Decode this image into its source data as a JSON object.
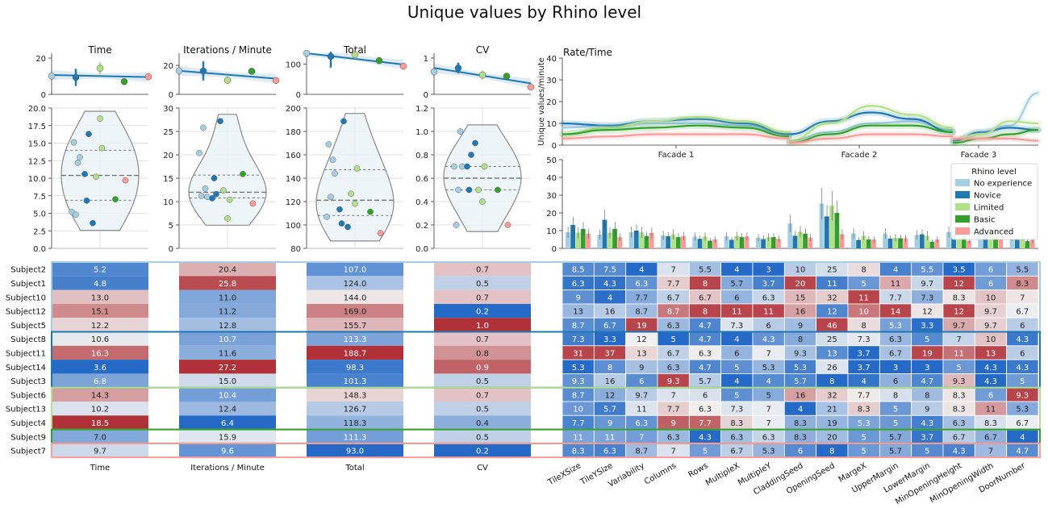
{
  "title": "Unique values by Rhino level",
  "palette": {
    "No experience": "#a6cee3",
    "Novice": "#1f78b4",
    "Limited": "#b2df8a",
    "Basic": "#33a02c",
    "Advanced": "#fb9a99"
  },
  "legend": {
    "title": "Rhino level",
    "entries": [
      "No experience",
      "Novice",
      "Limited",
      "Basic",
      "Advanced"
    ],
    "placement": "right"
  },
  "metric_panels": [
    {
      "title": "Time",
      "reg_ylim": [
        0,
        20
      ],
      "reg_yticks": [
        0,
        20
      ],
      "violin_ylim": [
        0,
        20
      ],
      "violin_yticks": [
        0.0,
        2.5,
        5.0,
        7.5,
        10.0,
        12.5,
        15.0,
        17.5,
        20.0
      ],
      "violin_yticklabels": [
        "0.0",
        "2.5",
        "5.0",
        "7.5",
        "10.0",
        "12.5",
        "15.0",
        "17.5",
        "20.0"
      ],
      "heat_xlabel": "Time"
    },
    {
      "title": "Iterations / Minute",
      "reg_ylim": [
        0,
        25
      ],
      "reg_yticks": [
        0,
        20
      ],
      "violin_ylim": [
        0,
        30
      ],
      "violin_yticks": [
        0,
        5,
        10,
        15,
        20,
        25,
        30
      ],
      "violin_yticklabels": [
        "0",
        "5",
        "10",
        "15",
        "20",
        "25",
        "30"
      ],
      "heat_xlabel": "Iterations / Minute"
    },
    {
      "title": "Total",
      "reg_ylim": [
        0,
        120
      ],
      "reg_yticks": [
        0,
        100
      ],
      "violin_ylim": [
        80,
        200
      ],
      "violin_yticks": [
        80,
        100,
        120,
        140,
        160,
        180,
        200
      ],
      "violin_yticklabels": [
        "80",
        "100",
        "120",
        "140",
        "160",
        "180",
        "200"
      ],
      "heat_xlabel": "Total"
    },
    {
      "title": "CV",
      "reg_ylim": [
        0,
        1
      ],
      "reg_yticks": [
        0,
        1
      ],
      "violin_ylim": [
        0,
        1.2
      ],
      "violin_yticks": [
        0.0,
        0.2,
        0.4,
        0.6,
        0.8,
        1.0,
        1.2
      ],
      "violin_yticklabels": [
        "0.0",
        "0.2",
        "0.4",
        "0.6",
        "0.8",
        "1.0",
        "1.2"
      ],
      "heat_xlabel": "CV"
    }
  ],
  "subjects": [
    {
      "name": "Subject2",
      "level": "No experience",
      "metrics": [
        "5.2",
        "20.4",
        "107.0",
        "0.7"
      ],
      "params": [
        "8.5",
        "7.5",
        "4",
        "7",
        "5.5",
        "4",
        "3",
        "10",
        "25",
        "8",
        "4",
        "5.5",
        "3.5",
        "6",
        "5.5"
      ]
    },
    {
      "name": "Subject1",
      "level": "No experience",
      "metrics": [
        "4.8",
        "25.8",
        "124.0",
        "0.5"
      ],
      "params": [
        "6.3",
        "4.3",
        "6.3",
        "7.7",
        "8",
        "5.7",
        "3.7",
        "20",
        "11",
        "5",
        "11",
        "9.7",
        "12",
        "6",
        "8.3"
      ]
    },
    {
      "name": "Subject10",
      "level": "No experience",
      "metrics": [
        "13.0",
        "11.0",
        "144.0",
        "0.7"
      ],
      "params": [
        "9",
        "4",
        "7.7",
        "6.7",
        "6.7",
        "6",
        "6.3",
        "15",
        "32",
        "11",
        "7.7",
        "7.3",
        "8.3",
        "10",
        "7"
      ]
    },
    {
      "name": "Subject12",
      "level": "No experience",
      "metrics": [
        "15.1",
        "11.2",
        "169.0",
        "0.2"
      ],
      "params": [
        "13",
        "16",
        "8.7",
        "8.7",
        "8",
        "11",
        "11",
        "16",
        "12",
        "10",
        "14",
        "12",
        "12",
        "9.7",
        "6.7"
      ]
    },
    {
      "name": "Subject5",
      "level": "No experience",
      "metrics": [
        "12.2",
        "12.8",
        "155.7",
        "1.0"
      ],
      "params": [
        "8.7",
        "6.7",
        "19",
        "6.3",
        "4.7",
        "7.3",
        "6",
        "9",
        "46",
        "8",
        "5.3",
        "3.3",
        "9.7",
        "9.7",
        "6"
      ]
    },
    {
      "name": "Subject8",
      "level": "Novice",
      "metrics": [
        "10.6",
        "10.7",
        "113.3",
        "0.7"
      ],
      "params": [
        "7.3",
        "3.3",
        "12",
        "5",
        "4.7",
        "4",
        "4.3",
        "8",
        "25",
        "7.3",
        "6.3",
        "5",
        "7",
        "10",
        "4.3"
      ]
    },
    {
      "name": "Subject11",
      "level": "Novice",
      "metrics": [
        "16.3",
        "11.6",
        "188.7",
        "0.8"
      ],
      "params": [
        "31",
        "37",
        "13",
        "6.7",
        "6.3",
        "6",
        "7",
        "9.3",
        "13",
        "3.7",
        "6.7",
        "19",
        "11",
        "13",
        "6"
      ]
    },
    {
      "name": "Subject14",
      "level": "Novice",
      "metrics": [
        "3.6",
        "27.2",
        "98.3",
        "0.9"
      ],
      "params": [
        "5.3",
        "8",
        "9",
        "6.3",
        "4.7",
        "5",
        "5.3",
        "5.3",
        "26",
        "3.7",
        "3",
        "3",
        "5",
        "4.3",
        "4.3"
      ]
    },
    {
      "name": "Subject3",
      "level": "Novice",
      "metrics": [
        "6.8",
        "15.0",
        "101.3",
        "0.5"
      ],
      "params": [
        "9.3",
        "16",
        "6",
        "9.3",
        "5.7",
        "4",
        "4",
        "5.7",
        "8",
        "4",
        "6",
        "4.7",
        "9.3",
        "4.3",
        "5"
      ]
    },
    {
      "name": "Subject6",
      "level": "Limited",
      "metrics": [
        "14.3",
        "10.4",
        "148.3",
        "0.7"
      ],
      "params": [
        "8.7",
        "12",
        "9.7",
        "7",
        "6",
        "5",
        "5",
        "16",
        "32",
        "7.7",
        "8",
        "8",
        "8.3",
        "6",
        "9.3"
      ]
    },
    {
      "name": "Subject13",
      "level": "Limited",
      "metrics": [
        "10.2",
        "12.4",
        "126.7",
        "0.5"
      ],
      "params": [
        "10",
        "5.7",
        "11",
        "7.7",
        "6.3",
        "7.3",
        "7",
        "4",
        "21",
        "8.3",
        "5",
        "9",
        "8.3",
        "11",
        "5.3"
      ]
    },
    {
      "name": "Subject4",
      "level": "Limited",
      "metrics": [
        "18.5",
        "6.4",
        "118.3",
        "0.4"
      ],
      "params": [
        "7.7",
        "9",
        "6.3",
        "9",
        "7.7",
        "8.3",
        "7",
        "8.3",
        "19",
        "5.3",
        "5",
        "4.3",
        "6.3",
        "8.3",
        "6.7"
      ]
    },
    {
      "name": "Subject9",
      "level": "Basic",
      "metrics": [
        "7.0",
        "15.9",
        "111.3",
        "0.5"
      ],
      "params": [
        "11",
        "11",
        "7",
        "6.3",
        "4.3",
        "6.3",
        "6.3",
        "8.3",
        "20",
        "5",
        "5.7",
        "3.7",
        "6.7",
        "6.7",
        "4"
      ]
    },
    {
      "name": "Subject7",
      "level": "Advanced",
      "metrics": [
        "9.7",
        "9.6",
        "93.0",
        "0.2"
      ],
      "params": [
        "8.3",
        "6.3",
        "8.7",
        "7",
        "5",
        "6.7",
        "5.3",
        "6",
        "8",
        "5",
        "5.7",
        "5",
        "4.3",
        "7",
        "4.7"
      ]
    }
  ],
  "params": [
    "TileXSize",
    "TileYSize",
    "Variability",
    "Columns",
    "Rows",
    "MultipleX",
    "MultipleY",
    "CladdingSeed",
    "OpeningSeed",
    "MargeX",
    "UpperMargin",
    "LowerMargin",
    "MinOpeningHeight",
    "MinOpeningWidth",
    "DoorNumber"
  ],
  "rate_time": {
    "title": "Rate/Time",
    "ylabel": "Unique values/minute",
    "ylim": [
      0,
      40
    ],
    "yticks": [
      0,
      10,
      20,
      30,
      40
    ],
    "sections": [
      "Facade 1",
      "Facade 2",
      "Facade 3"
    ]
  },
  "param_bar": {
    "ylim": [
      0,
      50
    ],
    "yticks": [
      0,
      10,
      20,
      30,
      40,
      50
    ]
  },
  "chart_data": [
    {
      "type": "scatter",
      "title": "Time",
      "series": [
        {
          "name": "No experience",
          "values": [
            5.2,
            4.8,
            13.0,
            15.1,
            12.2
          ]
        },
        {
          "name": "Novice",
          "values": [
            10.6,
            16.3,
            3.6,
            6.8
          ]
        },
        {
          "name": "Limited",
          "values": [
            14.3,
            10.2,
            18.5
          ]
        },
        {
          "name": "Basic",
          "values": [
            7.0
          ]
        },
        {
          "name": "Advanced",
          "values": [
            9.7
          ]
        }
      ],
      "ylim": [
        0,
        20
      ]
    },
    {
      "type": "scatter",
      "title": "Iterations / Minute",
      "series": [
        {
          "name": "No experience",
          "values": [
            20.4,
            25.8,
            11.0,
            11.2,
            12.8
          ]
        },
        {
          "name": "Novice",
          "values": [
            10.7,
            11.6,
            27.2,
            15.0
          ]
        },
        {
          "name": "Limited",
          "values": [
            10.4,
            12.4,
            6.4
          ]
        },
        {
          "name": "Basic",
          "values": [
            15.9
          ]
        },
        {
          "name": "Advanced",
          "values": [
            9.6
          ]
        }
      ],
      "ylim": [
        0,
        30
      ]
    },
    {
      "type": "scatter",
      "title": "Total",
      "series": [
        {
          "name": "No experience",
          "values": [
            107.0,
            124.0,
            144.0,
            169.0,
            155.7
          ]
        },
        {
          "name": "Novice",
          "values": [
            113.3,
            188.7,
            98.3,
            101.3
          ]
        },
        {
          "name": "Limited",
          "values": [
            148.3,
            126.7,
            118.3
          ]
        },
        {
          "name": "Basic",
          "values": [
            111.3
          ]
        },
        {
          "name": "Advanced",
          "values": [
            93.0
          ]
        }
      ],
      "ylim": [
        80,
        200
      ]
    },
    {
      "type": "scatter",
      "title": "CV",
      "series": [
        {
          "name": "No experience",
          "values": [
            0.7,
            0.5,
            0.7,
            0.2,
            1.0
          ]
        },
        {
          "name": "Novice",
          "values": [
            0.7,
            0.8,
            0.9,
            0.5
          ]
        },
        {
          "name": "Limited",
          "values": [
            0.7,
            0.5,
            0.4
          ]
        },
        {
          "name": "Basic",
          "values": [
            0.5
          ]
        },
        {
          "name": "Advanced",
          "values": [
            0.2
          ]
        }
      ],
      "ylim": [
        0,
        1.2
      ]
    },
    {
      "type": "line",
      "title": "Rate/Time",
      "ylabel": "Unique values/minute",
      "ylim": [
        0,
        40
      ],
      "categories": [
        "Facade 1",
        "Facade 2",
        "Facade 3"
      ],
      "series": [
        {
          "name": "No experience",
          "values": [
            [
              8,
              9,
              10,
              10,
              9,
              5
            ],
            [
              2,
              6,
              10,
              11,
              7
            ],
            [
              2,
              6,
              9,
              24
            ]
          ]
        },
        {
          "name": "Novice",
          "values": [
            [
              10,
              9,
              11,
              12,
              10,
              5
            ],
            [
              5,
              11,
              15,
              12,
              6
            ],
            [
              2,
              6,
              8,
              7
            ]
          ]
        },
        {
          "name": "Limited",
          "values": [
            [
              5,
              8,
              11,
              13,
              11,
              6
            ],
            [
              2,
              10,
              18,
              14,
              8
            ],
            [
              3,
              5,
              11,
              10
            ]
          ]
        },
        {
          "name": "Basic",
          "values": [
            [
              5,
              7,
              8,
              9,
              8,
              4
            ],
            [
              1,
              5,
              9,
              9,
              6
            ],
            [
              1,
              3,
              5,
              7
            ]
          ]
        },
        {
          "name": "Advanced",
          "values": [
            [
              3,
              4,
              5,
              5,
              5,
              3
            ],
            [
              1,
              3,
              5,
              5,
              4
            ],
            [
              3,
              3,
              3,
              2
            ]
          ]
        }
      ]
    },
    {
      "type": "bar",
      "ylim": [
        0,
        50
      ],
      "categories": [
        "TileXSize",
        "TileYSize",
        "Variability",
        "Columns",
        "Rows",
        "MultipleX",
        "MultipleY",
        "CladdingSeed",
        "OpeningSeed",
        "MargeX",
        "UpperMargin",
        "LowerMargin",
        "MinOpeningHeight",
        "MinOpeningWidth",
        "DoorNumber"
      ],
      "series": [
        {
          "name": "No experience",
          "values": [
            9.1,
            7.7,
            9.1,
            7.3,
            6.6,
            6.8,
            6.0,
            14.0,
            25.2,
            8.4,
            8.3,
            7.6,
            9.1,
            8.3,
            6.7
          ]
        },
        {
          "name": "Novice",
          "values": [
            13.2,
            16.1,
            10.0,
            6.8,
            5.4,
            4.8,
            5.2,
            7.1,
            18.0,
            4.7,
            5.5,
            7.9,
            8.1,
            7.9,
            4.9
          ]
        },
        {
          "name": "Limited",
          "values": [
            8.8,
            8.9,
            9.0,
            7.9,
            6.7,
            6.9,
            6.3,
            9.4,
            24.0,
            7.1,
            6.0,
            7.1,
            7.6,
            8.4,
            7.1
          ]
        },
        {
          "name": "Basic",
          "values": [
            11.0,
            11.0,
            7.0,
            6.3,
            4.3,
            6.3,
            6.3,
            8.3,
            20.0,
            5.0,
            5.7,
            3.7,
            6.7,
            6.7,
            4.0
          ]
        },
        {
          "name": "Advanced",
          "values": [
            8.3,
            6.3,
            8.7,
            7.0,
            5.0,
            6.7,
            5.3,
            6.0,
            8.0,
            5.0,
            5.7,
            5.0,
            4.3,
            7.0,
            4.7
          ]
        }
      ]
    },
    {
      "type": "heatmap",
      "rows": [
        "Subject2",
        "Subject1",
        "Subject10",
        "Subject12",
        "Subject5",
        "Subject8",
        "Subject11",
        "Subject14",
        "Subject3",
        "Subject6",
        "Subject13",
        "Subject4",
        "Subject9",
        "Subject7"
      ],
      "columns": [
        "Time",
        "Iterations / Minute",
        "Total",
        "CV",
        "TileXSize",
        "TileYSize",
        "Variability",
        "Columns",
        "Rows",
        "MultipleX",
        "MultipleY",
        "CladdingSeed",
        "OpeningSeed",
        "MargeX",
        "UpperMargin",
        "LowerMargin",
        "MinOpeningHeight",
        "MinOpeningWidth",
        "DoorNumber"
      ]
    }
  ]
}
